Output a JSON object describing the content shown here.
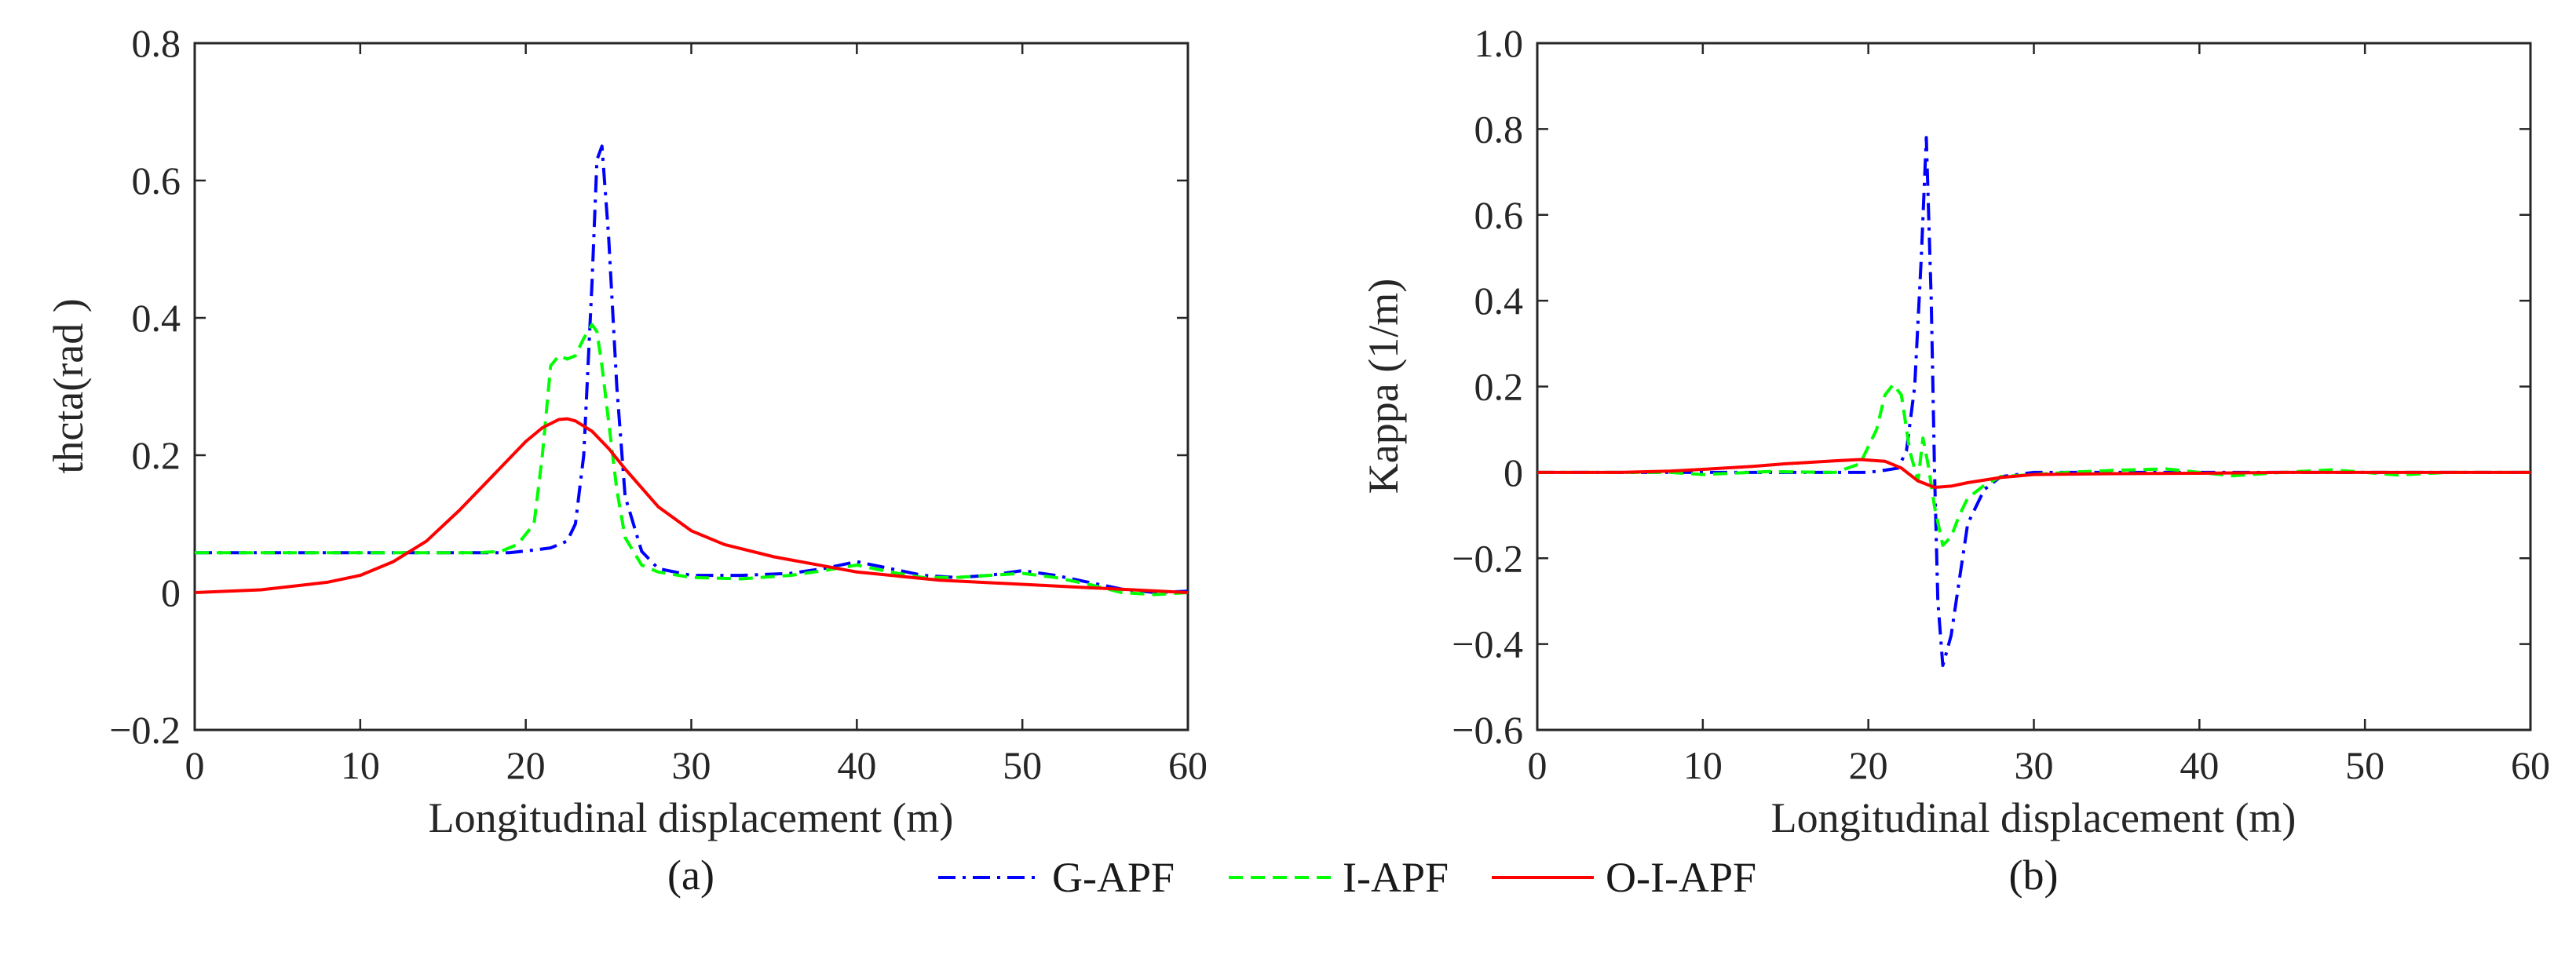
{
  "chart_data": [
    {
      "type": "line",
      "subplot_label": "(a)",
      "xlabel": "Longitudinal displacement (m)",
      "ylabel": "thcta(rad )",
      "xlim": [
        0,
        60
      ],
      "ylim": [
        -0.2,
        0.8
      ],
      "xticks": [
        0,
        10,
        20,
        30,
        40,
        50,
        60
      ],
      "xtick_labels": [
        "0",
        "10",
        "20",
        "30",
        "40",
        "50",
        "60"
      ],
      "yticks": [
        -0.2,
        0,
        0.2,
        0.4,
        0.6,
        0.8
      ],
      "ytick_labels": [
        "−0.2",
        "0",
        "0.2",
        "0.4",
        "0.6",
        "0.8"
      ],
      "series": [
        {
          "name": "G-APF",
          "x": [
            0,
            5,
            10,
            14,
            17,
            19,
            20.5,
            21.5,
            22.5,
            23,
            23.5,
            24,
            24.3,
            24.6,
            25,
            25.5,
            26,
            27,
            28,
            30,
            33,
            36,
            38,
            40,
            42,
            44,
            46,
            48,
            50,
            52,
            54,
            56,
            58,
            60
          ],
          "y": [
            0.058,
            0.058,
            0.058,
            0.058,
            0.058,
            0.058,
            0.062,
            0.065,
            0.075,
            0.1,
            0.2,
            0.45,
            0.63,
            0.65,
            0.52,
            0.3,
            0.14,
            0.06,
            0.035,
            0.025,
            0.025,
            0.028,
            0.035,
            0.045,
            0.035,
            0.025,
            0.022,
            0.025,
            0.032,
            0.025,
            0.015,
            0.005,
            0.0,
            0.002
          ]
        },
        {
          "name": "I-APF",
          "x": [
            0,
            5,
            10,
            14,
            17,
            18.5,
            19.5,
            20.5,
            21,
            21.5,
            22,
            22.5,
            23,
            23.5,
            24,
            24.3,
            24.6,
            25,
            25.5,
            26,
            27,
            28,
            30,
            33,
            36,
            38,
            40,
            42,
            44,
            46,
            48,
            50,
            52,
            54,
            56,
            58,
            60
          ],
          "y": [
            0.058,
            0.058,
            0.058,
            0.058,
            0.058,
            0.06,
            0.07,
            0.1,
            0.2,
            0.33,
            0.345,
            0.34,
            0.345,
            0.37,
            0.39,
            0.38,
            0.33,
            0.25,
            0.15,
            0.08,
            0.04,
            0.03,
            0.022,
            0.02,
            0.025,
            0.032,
            0.04,
            0.03,
            0.022,
            0.022,
            0.025,
            0.028,
            0.022,
            0.012,
            0.0,
            -0.003,
            0.0
          ]
        },
        {
          "name": "O-I-APF",
          "x": [
            0,
            4,
            8,
            10,
            12,
            14,
            16,
            18,
            20,
            21,
            22,
            22.5,
            23,
            24,
            25,
            26,
            28,
            30,
            32,
            35,
            40,
            45,
            50,
            55,
            60
          ],
          "y": [
            0.0,
            0.004,
            0.015,
            0.025,
            0.045,
            0.075,
            0.12,
            0.17,
            0.22,
            0.24,
            0.252,
            0.253,
            0.25,
            0.235,
            0.21,
            0.18,
            0.125,
            0.09,
            0.07,
            0.052,
            0.03,
            0.018,
            0.012,
            0.006,
            0.0
          ]
        }
      ]
    },
    {
      "type": "line",
      "subplot_label": "(b)",
      "xlabel": "Longitudinal displacement (m)",
      "ylabel": "Kappa (1/m)",
      "xlim": [
        0,
        60
      ],
      "ylim": [
        -0.6,
        1.0
      ],
      "xticks": [
        0,
        10,
        20,
        30,
        40,
        50,
        60
      ],
      "xtick_labels": [
        "0",
        "10",
        "20",
        "30",
        "40",
        "50",
        "60"
      ],
      "yticks": [
        -0.6,
        -0.4,
        -0.2,
        0,
        0.2,
        0.4,
        0.6,
        0.8,
        1.0
      ],
      "ytick_labels": [
        "−0.6",
        "−0.4",
        "−0.2",
        "0",
        "0.2",
        "0.4",
        "0.6",
        "0.8",
        "1.0"
      ],
      "series": [
        {
          "name": "G-APF",
          "x": [
            0,
            10,
            18,
            20,
            21,
            21.8,
            22.3,
            22.8,
            23.2,
            23.5,
            23.8,
            24,
            24.2,
            24.5,
            25,
            25.5,
            26,
            27,
            28,
            30,
            35,
            40,
            45,
            50,
            55,
            60
          ],
          "y": [
            0.0,
            0.0,
            0.0,
            0.0,
            0.005,
            0.01,
            0.05,
            0.2,
            0.5,
            0.78,
            0.4,
            0.0,
            -0.3,
            -0.45,
            -0.38,
            -0.25,
            -0.12,
            -0.04,
            -0.01,
            0.0,
            0.0,
            0.0,
            0.0,
            0.0,
            0.0,
            0.0
          ]
        },
        {
          "name": "I-APF",
          "x": [
            0,
            8,
            10,
            14,
            18,
            19.5,
            20.5,
            21,
            21.5,
            22,
            22.5,
            23,
            23.3,
            23.6,
            24,
            24.5,
            25,
            25.5,
            26,
            27,
            28,
            30,
            32,
            35,
            38,
            40,
            42,
            45,
            48,
            50,
            52,
            55,
            58,
            60
          ],
          "y": [
            0.0,
            0.0,
            -0.005,
            0.002,
            0.0,
            0.02,
            0.1,
            0.18,
            0.205,
            0.18,
            0.05,
            -0.02,
            0.08,
            0.02,
            -0.08,
            -0.17,
            -0.15,
            -0.1,
            -0.06,
            -0.03,
            -0.01,
            -0.005,
            0.0,
            0.005,
            0.008,
            0.0,
            -0.008,
            0.0,
            0.006,
            0.0,
            -0.006,
            0.0,
            0.0,
            0.0
          ]
        },
        {
          "name": "O-I-APF",
          "x": [
            0,
            5,
            8,
            10,
            13,
            15,
            18,
            19.5,
            21,
            22,
            23,
            24,
            25,
            26,
            28,
            30,
            35,
            40,
            45,
            50,
            55,
            60
          ],
          "y": [
            0.0,
            0.0,
            0.003,
            0.007,
            0.014,
            0.02,
            0.027,
            0.03,
            0.026,
            0.01,
            -0.02,
            -0.035,
            -0.032,
            -0.024,
            -0.012,
            -0.005,
            -0.003,
            -0.002,
            0.0,
            0.0,
            0.0,
            0.0
          ]
        }
      ]
    }
  ],
  "legend": {
    "items": [
      {
        "name": "G-APF",
        "color": "#0000ff",
        "style": "dashdot"
      },
      {
        "name": "I-APF",
        "color": "#00ff00",
        "style": "dashed"
      },
      {
        "name": "O-I-APF",
        "color": "#ff0000",
        "style": "solid"
      }
    ]
  }
}
